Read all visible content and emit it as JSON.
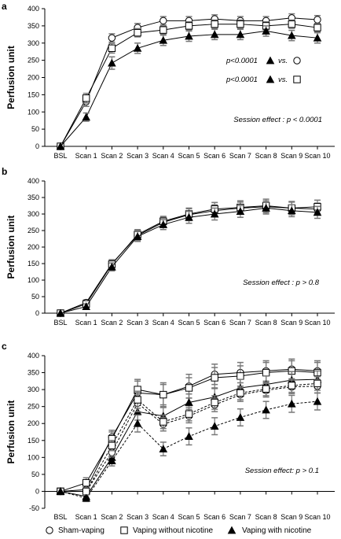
{
  "legend": [
    {
      "marker": "circle",
      "label": "Sham-vaping"
    },
    {
      "marker": "square",
      "label": "Vaping without nicotine"
    },
    {
      "marker": "triangle",
      "label": "Vaping with nicotine"
    }
  ],
  "chart_data": [
    {
      "type": "line",
      "panel": "a",
      "ylabel": "Perfusion unit",
      "categories": [
        "BSL",
        "Scan 1",
        "Scan 2",
        "Scan 3",
        "Scan 4",
        "Scan 5",
        "Scan 6",
        "Scan 7",
        "Scan 8",
        "Scan 9",
        "Scan 10"
      ],
      "ylim": [
        0,
        400
      ],
      "yticks": [
        "0",
        "50",
        "100",
        "150",
        "200",
        "250",
        "300",
        "350",
        "400"
      ],
      "series": [
        {
          "marker": "circle",
          "dashed": false,
          "values": [
            0,
            130,
            315,
            345,
            365,
            365,
            370,
            365,
            365,
            373,
            368
          ],
          "err": [
            0,
            14,
            12,
            12,
            12,
            12,
            12,
            12,
            12,
            12,
            12
          ]
        },
        {
          "marker": "square",
          "dashed": false,
          "values": [
            0,
            140,
            285,
            330,
            338,
            350,
            355,
            355,
            350,
            355,
            345
          ],
          "err": [
            0,
            14,
            14,
            12,
            12,
            12,
            12,
            12,
            12,
            12,
            12
          ]
        },
        {
          "marker": "triangle",
          "dashed": false,
          "values": [
            0,
            85,
            242,
            285,
            308,
            320,
            325,
            325,
            335,
            322,
            315
          ],
          "err": [
            0,
            12,
            18,
            15,
            15,
            15,
            15,
            15,
            15,
            15,
            15
          ]
        }
      ],
      "annotations": [
        {
          "type": "stat",
          "p": "p<0.0001",
          "vs": "vs.",
          "marker": "circle"
        },
        {
          "type": "stat",
          "p": "p<0.0001",
          "vs": "vs.",
          "marker": "square"
        },
        {
          "type": "text",
          "text": "Session effect : p < 0.0001"
        }
      ]
    },
    {
      "type": "line",
      "panel": "b",
      "ylabel": "Perfusion unit",
      "categories": [
        "BSL",
        "Scan 1",
        "Scan 2",
        "Scan 3",
        "Scan 4",
        "Scan 5",
        "Scan 6",
        "Scan 7",
        "Scan 8",
        "Scan 9",
        "Scan 10"
      ],
      "ylim": [
        0,
        400
      ],
      "yticks": [
        "0",
        "50",
        "100",
        "150",
        "200",
        "250",
        "300",
        "350",
        "400"
      ],
      "series": [
        {
          "marker": "circle",
          "dashed": false,
          "values": [
            0,
            32,
            150,
            235,
            275,
            298,
            310,
            318,
            322,
            318,
            315
          ],
          "err": [
            0,
            8,
            12,
            15,
            15,
            18,
            18,
            18,
            18,
            18,
            18
          ]
        },
        {
          "marker": "square",
          "dashed": false,
          "values": [
            0,
            28,
            148,
            238,
            278,
            300,
            315,
            320,
            325,
            318,
            322
          ],
          "err": [
            0,
            8,
            12,
            15,
            15,
            18,
            20,
            20,
            20,
            20,
            20
          ]
        },
        {
          "marker": "triangle",
          "dashed": false,
          "values": [
            0,
            20,
            140,
            232,
            268,
            290,
            300,
            308,
            318,
            310,
            305
          ],
          "err": [
            0,
            8,
            12,
            15,
            15,
            18,
            18,
            18,
            18,
            18,
            18
          ]
        }
      ],
      "annotations": [
        {
          "type": "text",
          "text": "Session effect : p > 0.8"
        }
      ]
    },
    {
      "type": "line",
      "panel": "c",
      "ylabel": "Perfusion unit",
      "categories": [
        "BSL",
        "Scan 1",
        "Scan 2",
        "Scan 3",
        "Scan 4",
        "Scan 5",
        "Scan 6",
        "Scan 7",
        "Scan 8",
        "Scan 9",
        "Scan 10"
      ],
      "ylim": [
        -50,
        400
      ],
      "yticks": [
        "-50",
        "0",
        "50",
        "100",
        "150",
        "200",
        "250",
        "300",
        "350",
        "400"
      ],
      "series": [
        {
          "marker": "circle",
          "dashed": false,
          "values": [
            0,
            5,
            160,
            290,
            285,
            310,
            345,
            350,
            355,
            360,
            355
          ],
          "err": [
            0,
            15,
            20,
            35,
            35,
            35,
            30,
            30,
            30,
            30,
            30
          ]
        },
        {
          "marker": "square",
          "dashed": false,
          "values": [
            0,
            25,
            155,
            300,
            285,
            305,
            335,
            340,
            350,
            355,
            350
          ],
          "err": [
            0,
            15,
            20,
            30,
            30,
            30,
            30,
            30,
            30,
            30,
            30
          ]
        },
        {
          "marker": "triangle",
          "dashed": false,
          "values": [
            0,
            -15,
            100,
            235,
            222,
            262,
            278,
            305,
            315,
            328,
            330
          ],
          "err": [
            0,
            10,
            15,
            25,
            25,
            25,
            25,
            25,
            25,
            25,
            25
          ]
        },
        {
          "marker": "circle",
          "dashed": true,
          "values": [
            0,
            0,
            115,
            260,
            198,
            222,
            255,
            285,
            298,
            308,
            310
          ],
          "err": [
            0,
            10,
            15,
            25,
            20,
            20,
            20,
            20,
            20,
            20,
            20
          ]
        },
        {
          "marker": "square",
          "dashed": true,
          "values": [
            0,
            0,
            135,
            270,
            205,
            228,
            262,
            290,
            302,
            312,
            318
          ],
          "err": [
            0,
            10,
            15,
            25,
            20,
            20,
            20,
            20,
            20,
            20,
            20
          ]
        },
        {
          "marker": "triangle",
          "dashed": true,
          "values": [
            0,
            -20,
            90,
            200,
            125,
            162,
            192,
            218,
            240,
            258,
            265
          ],
          "err": [
            0,
            10,
            15,
            25,
            20,
            25,
            25,
            25,
            25,
            25,
            25
          ]
        }
      ],
      "annotations": [
        {
          "type": "text",
          "text": "Session effect: p > 0.1"
        }
      ]
    }
  ]
}
